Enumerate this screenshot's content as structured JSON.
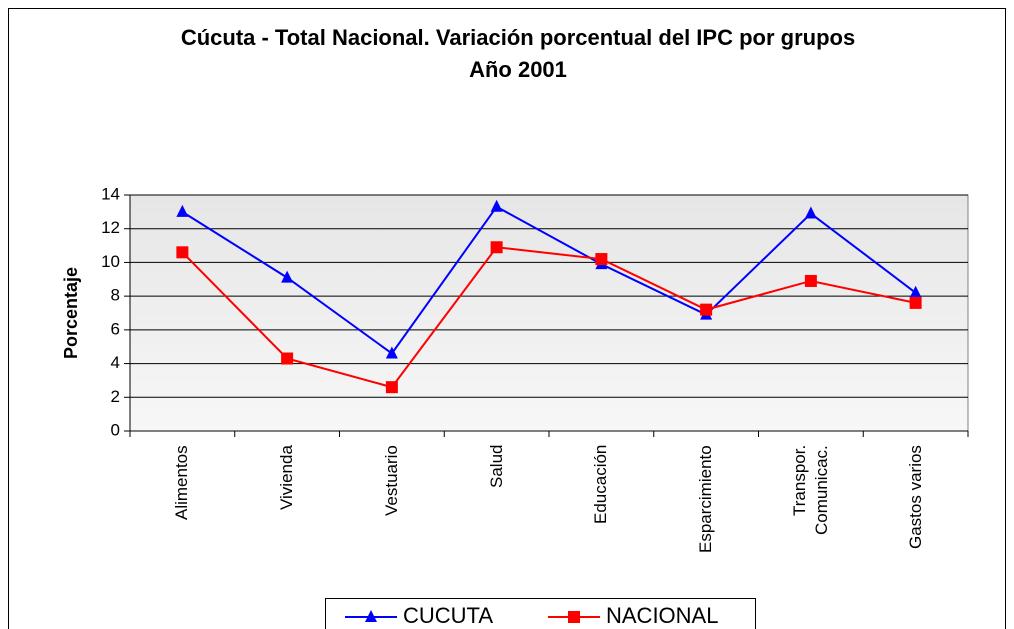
{
  "chart_data": {
    "type": "line",
    "title": "Cúcuta - Total Nacional. Variación porcentual del IPC por grupos",
    "subtitle": "Año 2001",
    "y_label": "Porcentaje",
    "categories": [
      "Alimentos",
      "Vivienda",
      "Vestuario",
      "Salud",
      "Educación",
      "Esparcimiento",
      "Transpor. Comunicac.",
      "Gastos varios"
    ],
    "series": [
      {
        "name": "CUCUTA",
        "color": "#0000ff",
        "marker": "triangle",
        "values": [
          13.0,
          9.1,
          4.6,
          13.3,
          9.9,
          6.9,
          12.9,
          8.2
        ]
      },
      {
        "name": "NACIONAL",
        "color": "#ff0000",
        "marker": "square",
        "values": [
          10.6,
          4.3,
          2.6,
          10.9,
          10.2,
          7.2,
          8.9,
          7.6
        ]
      }
    ],
    "ylim": [
      0,
      14
    ],
    "yticks": [
      0,
      2,
      4,
      6,
      8,
      10,
      12,
      14
    ],
    "grid": true,
    "legend": "bottom"
  }
}
